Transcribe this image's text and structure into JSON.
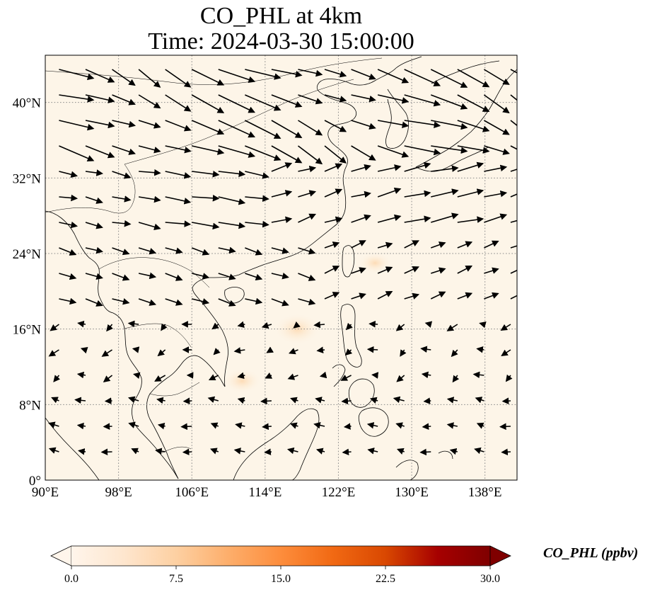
{
  "title": {
    "line1": "CO_PHL at 4km",
    "line2": "Time: 2024-03-30 15:00:00"
  },
  "map": {
    "type": "filled contour with wind vectors",
    "extent": {
      "lon": [
        90,
        141.5
      ],
      "lat": [
        0,
        45
      ]
    },
    "gridlines": "dotted",
    "x_ticks": [
      {
        "value": 90,
        "label": "90°E"
      },
      {
        "value": 98,
        "label": "98°E"
      },
      {
        "value": 106,
        "label": "106°E"
      },
      {
        "value": 114,
        "label": "114°E"
      },
      {
        "value": 122,
        "label": "122°E"
      },
      {
        "value": 130,
        "label": "130°E"
      },
      {
        "value": 138,
        "label": "138°E"
      }
    ],
    "y_ticks": [
      {
        "value": 0,
        "label": "0°"
      },
      {
        "value": 8,
        "label": "8°N"
      },
      {
        "value": 16,
        "label": "16°N"
      },
      {
        "value": 24,
        "label": "24°N"
      },
      {
        "value": 32,
        "label": "32°N"
      },
      {
        "value": 40,
        "label": "40°N"
      }
    ],
    "field_color": "#fdf5e8",
    "plume_areas": [
      {
        "lon": 117.5,
        "lat": 16.0,
        "value": 2.5
      },
      {
        "lon": 111.5,
        "lat": 10.5,
        "value": 1.5
      },
      {
        "lon": 126.0,
        "lat": 23.0,
        "value": 1.0
      }
    ]
  },
  "colorbar": {
    "label": "CO_PHL (ppbv)",
    "min": 0,
    "max": 30,
    "extend": "both",
    "colors": [
      "#fff5eb",
      "#fee6ce",
      "#fdd0a2",
      "#fdae6b",
      "#fd8d3c",
      "#f16913",
      "#d94801",
      "#a60000",
      "#7f0000"
    ],
    "ticks": [
      {
        "value": 0,
        "label": "0.0"
      },
      {
        "value": 7.5,
        "label": "7.5"
      },
      {
        "value": 15,
        "label": "15.0"
      },
      {
        "value": 22.5,
        "label": "22.5"
      },
      {
        "value": 30,
        "label": "30.0"
      }
    ]
  }
}
